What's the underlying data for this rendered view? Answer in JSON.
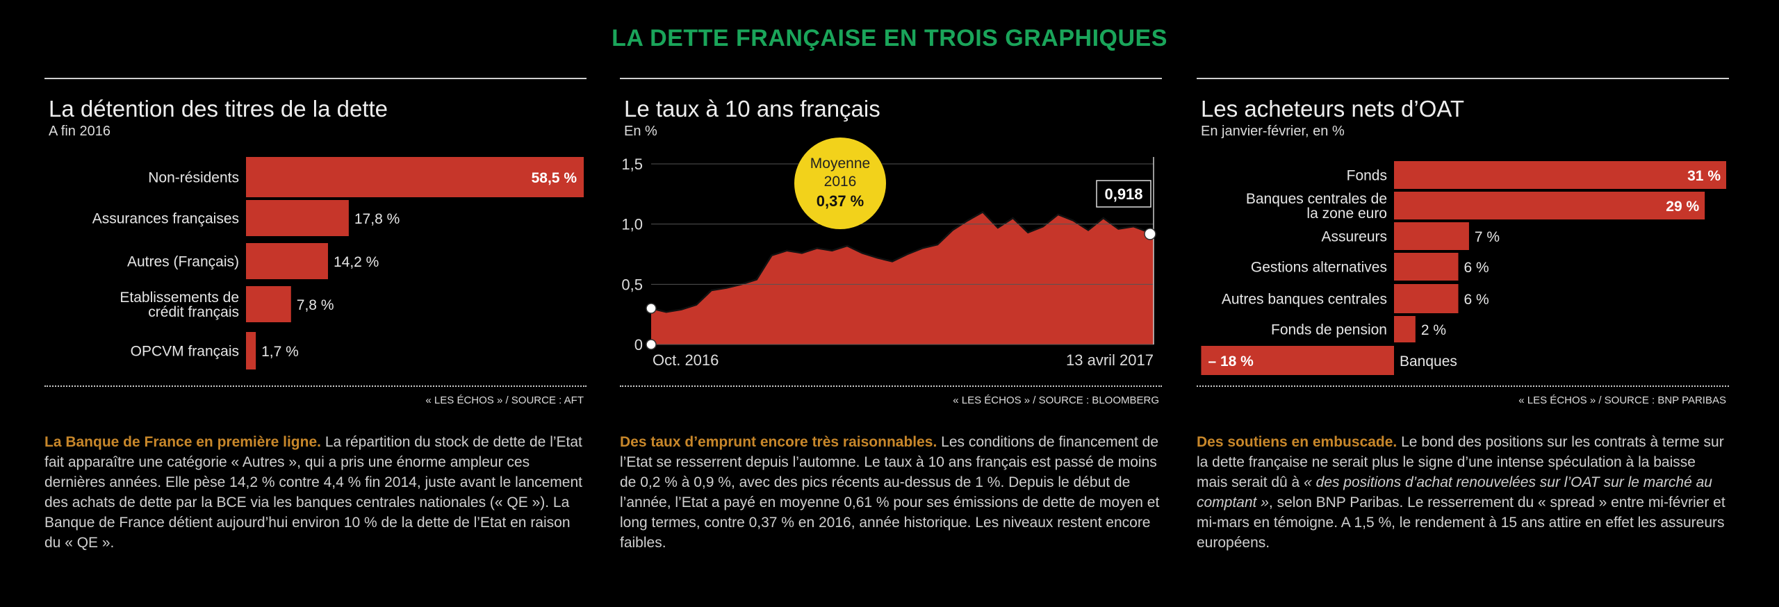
{
  "page": {
    "title": "LA DETTE FRANÇAISE EN TROIS GRAPHIQUES"
  },
  "colors": {
    "bar": "#c6362a",
    "title": "#1aa55a",
    "lead": "#c8872a",
    "badge": "#f2d21b"
  },
  "panels": [
    {
      "title": "La détention des titres de la dette",
      "subtitle": "A fin 2016",
      "source": "« LES ÉCHOS » / SOURCE : AFT",
      "text_lead": "La Banque de France en première ligne.",
      "text_body": "La répartition du stock de dette de l’Etat fait apparaître une catégorie « Autres », qui a pris une énorme ampleur ces dernières années. Elle pèse 14,2 % contre 4,4 % fin 2014, juste avant le lancement des achats de dette par la BCE via les banques centrales nationales (« QE »). La Banque de France détient aujourd’hui environ 10 % de la dette de l’Etat en raison du « QE »."
    },
    {
      "title": "Le taux à 10 ans français",
      "subtitle": "En %",
      "source": "« LES ÉCHOS » / SOURCE : BLOOMBERG",
      "text_lead": "Des taux d’emprunt encore très raisonnables.",
      "text_body": "Les conditions de financement de l’Etat se resserrent depuis l’automne. Le taux à 10 ans français est passé de moins de 0,2 % à 0,9 %, avec des pics récents au-dessus de 1 %. Depuis le début de l’année, l’Etat a payé en moyenne 0,61 % pour ses émissions de dette de moyen et long termes, contre 0,37 % en 2016, année historique. Les niveaux restent encore faibles."
    },
    {
      "title": "Les acheteurs nets d’OAT",
      "subtitle": "En janvier-février, en %",
      "source": "« LES ÉCHOS » / SOURCE : BNP PARIBAS",
      "text_lead": "Des soutiens en embuscade.",
      "text_body1": "Le bond des positions sur les contrats à terme sur la dette française ne serait plus le signe d’une intense spéculation à la baisse mais serait dû à",
      "text_quote": "« des positions d’achat renouvelées sur l’OAT sur le marché au comptant »",
      "text_body2": ", selon BNP Paribas. Le resserrement du « spread » entre mi-février et mi-mars en témoigne. A 1,5 %, le rendement à 15 ans attire en effet les assureurs européens."
    }
  ],
  "chart_data": [
    {
      "type": "bar",
      "orientation": "horizontal",
      "title": "La détention des titres de la dette",
      "subtitle": "A fin 2016",
      "categories": [
        "Non-résidents",
        "Assurances françaises",
        "Autres (Français)",
        "Etablissements de crédit français",
        "OPCVM français"
      ],
      "values": [
        58.5,
        17.8,
        14.2,
        7.8,
        1.7
      ],
      "labels": [
        "58,5 %",
        "17,8 %",
        "14,2 %",
        "7,8 %",
        "1,7 %"
      ]
    },
    {
      "type": "area",
      "title": "Le taux à 10 ans français",
      "subtitle": "En %",
      "ylim": [
        0,
        1.5
      ],
      "yticks": [
        "0",
        "0,5",
        "1,0",
        "1,5"
      ],
      "x_start": "Oct. 2016",
      "x_end": "13 avril 2017",
      "last_value_label": "0,918",
      "annotation_title": "Moyenne",
      "annotation_year": "2016",
      "annotation_value": "0,37 %",
      "x": [
        0,
        3,
        6,
        9,
        12,
        15,
        18,
        21,
        24,
        27,
        30,
        33,
        36,
        39,
        42,
        45,
        48,
        51,
        54,
        57,
        60,
        63,
        66,
        69,
        72,
        75,
        78,
        81,
        84,
        87,
        90,
        93,
        96,
        100
      ],
      "y": [
        0.3,
        0.27,
        0.29,
        0.33,
        0.45,
        0.47,
        0.5,
        0.54,
        0.74,
        0.78,
        0.76,
        0.8,
        0.78,
        0.82,
        0.76,
        0.72,
        0.69,
        0.75,
        0.8,
        0.83,
        0.95,
        1.03,
        1.1,
        0.97,
        1.05,
        0.93,
        0.98,
        1.08,
        1.03,
        0.95,
        1.05,
        0.96,
        0.98,
        0.918
      ]
    },
    {
      "type": "bar",
      "orientation": "horizontal",
      "title": "Les acheteurs nets d’OAT",
      "subtitle": "En janvier-février, en %",
      "categories": [
        "Fonds",
        "Banques centrales de la zone euro",
        "Assureurs",
        "Gestions alternatives",
        "Autres banques centrales",
        "Fonds de pension",
        "Banques"
      ],
      "values": [
        31,
        29,
        7,
        6,
        6,
        2,
        -18
      ],
      "labels": [
        "31 %",
        "29 %",
        "7 %",
        "6 %",
        "6 %",
        "2 %",
        "– 18 %"
      ]
    }
  ]
}
